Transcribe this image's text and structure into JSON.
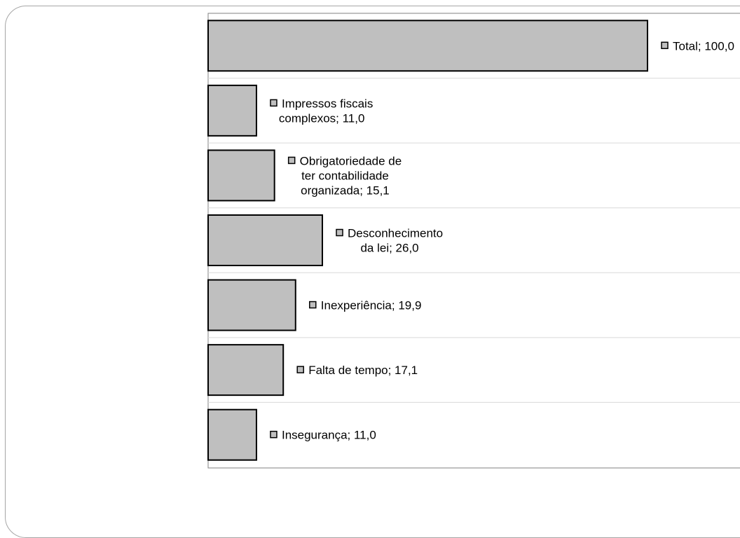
{
  "chart_data": {
    "type": "bar",
    "orientation": "horizontal",
    "categories": [
      "Total",
      "Impressos fiscais complexos",
      "Obrigatoriedade de ter contabilidade organizada",
      "Desconhecimento da lei",
      "Inexperiência",
      "Falta de tempo",
      "Insegurança"
    ],
    "values": [
      100.0,
      11.0,
      15.1,
      26.0,
      19.9,
      17.1,
      11.0
    ],
    "data_labels": [
      [
        "Total; 100,0"
      ],
      [
        "Impressos fiscais",
        "complexos; 11,0"
      ],
      [
        "Obrigatoriedade de",
        "ter contabilidade",
        "organizada; 15,1"
      ],
      [
        "Desconhecimento",
        "da lei; 26,0"
      ],
      [
        "Inexperiência; 19,9"
      ],
      [
        "Falta de tempo; 17,1"
      ],
      [
        "Insegurança; 11,0"
      ]
    ],
    "xlim": [
      0,
      100
    ],
    "grid": true,
    "bar_color": "#bfbfbf",
    "edge_color": "#000000",
    "title": "",
    "xlabel": "",
    "ylabel": ""
  }
}
